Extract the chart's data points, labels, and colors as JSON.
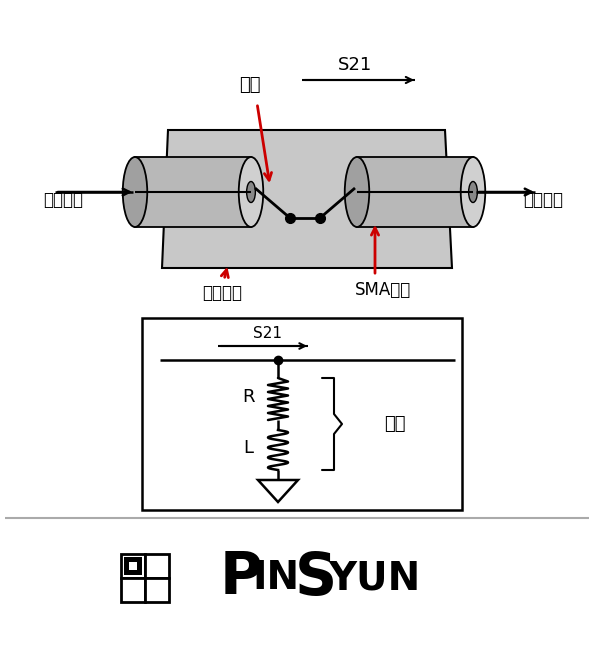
{
  "bg_color": "#ffffff",
  "border_color": "#000000",
  "gray_color": "#b8b8b8",
  "light_gray": "#d0d0d0",
  "red_color": "#cc0000",
  "text_color": "#000000",
  "figsize": [
    5.94,
    6.47
  ],
  "dpi": 100,
  "label_yinxian": "引线",
  "label_jiedituban": "接地铜板",
  "label_SMA": "SMA接头",
  "label_cong": "从激励源",
  "label_dao": "到接收机",
  "label_yinxian2": "引线",
  "label_S21": "S21",
  "label_R": "R",
  "label_L": "L"
}
